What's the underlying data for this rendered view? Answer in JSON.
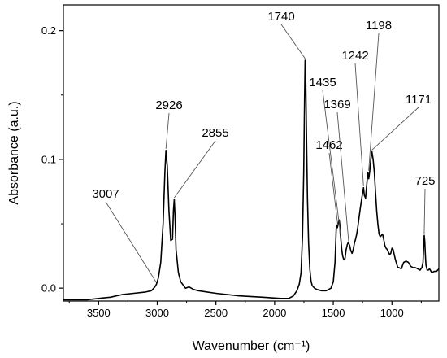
{
  "chart_data": {
    "type": "line",
    "xlabel": "Wavenumber (cm⁻¹)",
    "ylabel": "Absorbance (a.u.)",
    "x_reversed": true,
    "xlim": [
      3800,
      600
    ],
    "ylim": [
      -0.01,
      0.22
    ],
    "xticks": [
      3500,
      3000,
      2500,
      2000,
      1500,
      1000
    ],
    "xtick_labels": [
      "3500",
      "3000",
      "2500",
      "2000",
      "1500",
      "1000"
    ],
    "yticks": [
      0.0,
      0.1,
      0.2
    ],
    "ytick_labels": [
      "0.0",
      "0.1",
      "0.2"
    ],
    "grid": false,
    "series": [
      {
        "x": [
          3800,
          3700,
          3600,
          3500,
          3400,
          3300,
          3200,
          3100,
          3050,
          3020,
          3007,
          2990,
          2970,
          2950,
          2935,
          2926,
          2915,
          2900,
          2885,
          2870,
          2862,
          2855,
          2848,
          2840,
          2820,
          2800,
          2760,
          2730,
          2710,
          2690,
          2650,
          2500,
          2300,
          2100,
          1950,
          1880,
          1840,
          1810,
          1790,
          1775,
          1762,
          1752,
          1745,
          1740,
          1735,
          1728,
          1720,
          1710,
          1700,
          1690,
          1680,
          1660,
          1640,
          1600,
          1560,
          1520,
          1500,
          1485,
          1475,
          1470,
          1465,
          1462,
          1458,
          1450,
          1445,
          1440,
          1435,
          1428,
          1420,
          1410,
          1400,
          1390,
          1380,
          1375,
          1369,
          1360,
          1350,
          1340,
          1330,
          1320,
          1310,
          1300,
          1290,
          1280,
          1270,
          1260,
          1250,
          1242,
          1235,
          1225,
          1215,
          1205,
          1198,
          1190,
          1180,
          1171,
          1160,
          1150,
          1140,
          1130,
          1120,
          1110,
          1100,
          1090,
          1080,
          1070,
          1060,
          1050,
          1040,
          1030,
          1020,
          1010,
          1000,
          990,
          980,
          970,
          960,
          950,
          940,
          920,
          900,
          880,
          860,
          840,
          820,
          800,
          780,
          760,
          745,
          735,
          730,
          725,
          720,
          715,
          710,
          700,
          690,
          680,
          660,
          640,
          620,
          600
        ],
        "y": [
          -0.009,
          -0.009,
          -0.009,
          -0.008,
          -0.007,
          -0.005,
          -0.004,
          -0.003,
          -0.002,
          0.001,
          0.003,
          0.008,
          0.02,
          0.05,
          0.09,
          0.107,
          0.095,
          0.06,
          0.037,
          0.038,
          0.06,
          0.069,
          0.055,
          0.03,
          0.012,
          0.005,
          0.0,
          0.001,
          0.0,
          -0.001,
          -0.002,
          -0.004,
          -0.006,
          -0.007,
          -0.008,
          -0.008,
          -0.006,
          -0.002,
          0.003,
          0.012,
          0.04,
          0.09,
          0.145,
          0.177,
          0.165,
          0.12,
          0.07,
          0.035,
          0.015,
          0.006,
          0.002,
          0.0,
          -0.001,
          -0.002,
          -0.002,
          0.0,
          0.005,
          0.02,
          0.046,
          0.049,
          0.047,
          0.048,
          0.05,
          0.053,
          0.05,
          0.042,
          0.038,
          0.03,
          0.025,
          0.022,
          0.023,
          0.03,
          0.034,
          0.035,
          0.035,
          0.033,
          0.029,
          0.027,
          0.03,
          0.035,
          0.038,
          0.042,
          0.048,
          0.055,
          0.062,
          0.068,
          0.074,
          0.078,
          0.072,
          0.07,
          0.08,
          0.09,
          0.085,
          0.09,
          0.1,
          0.106,
          0.1,
          0.09,
          0.075,
          0.06,
          0.05,
          0.042,
          0.04,
          0.041,
          0.042,
          0.038,
          0.033,
          0.031,
          0.03,
          0.028,
          0.026,
          0.027,
          0.031,
          0.03,
          0.026,
          0.022,
          0.019,
          0.016,
          0.016,
          0.015,
          0.02,
          0.021,
          0.02,
          0.017,
          0.016,
          0.016,
          0.015,
          0.014,
          0.016,
          0.02,
          0.031,
          0.041,
          0.036,
          0.026,
          0.018,
          0.014,
          0.014,
          0.015,
          0.012,
          0.013,
          0.013,
          0.015
        ]
      }
    ],
    "annotations": [
      {
        "label": "3007",
        "x": 3007,
        "y": 0.003
      },
      {
        "label": "2926",
        "x": 2926,
        "y": 0.107
      },
      {
        "label": "2855",
        "x": 2855,
        "y": 0.069
      },
      {
        "label": "1740",
        "x": 1740,
        "y": 0.177
      },
      {
        "label": "1462",
        "x": 1462,
        "y": 0.048
      },
      {
        "label": "1435",
        "x": 1435,
        "y": 0.038
      },
      {
        "label": "1369",
        "x": 1369,
        "y": 0.035
      },
      {
        "label": "1242",
        "x": 1242,
        "y": 0.078
      },
      {
        "label": "1198",
        "x": 1198,
        "y": 0.09
      },
      {
        "label": "1171",
        "x": 1171,
        "y": 0.106
      },
      {
        "label": "725",
        "x": 725,
        "y": 0.041
      }
    ]
  }
}
